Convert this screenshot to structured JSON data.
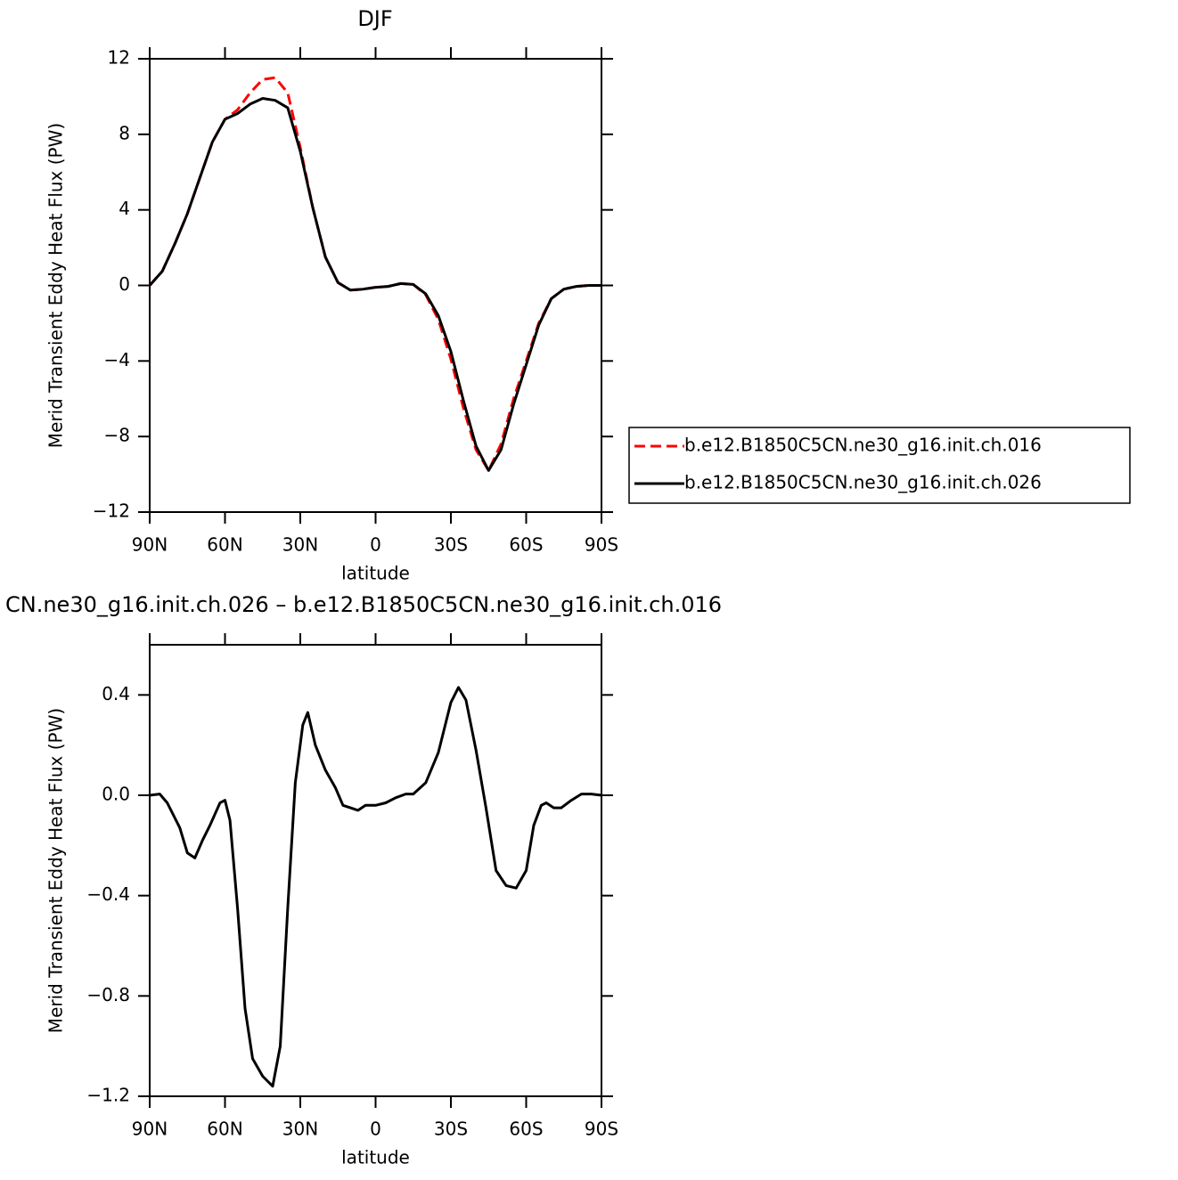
{
  "chart_data": [
    {
      "type": "line",
      "title": "DJF",
      "xlabel": "latitude",
      "ylabel": "Merid Transient Eddy Heat Flux (PW)",
      "x": [
        90,
        85,
        80,
        75,
        70,
        65,
        60,
        55,
        50,
        45,
        40,
        35,
        30,
        25,
        20,
        15,
        10,
        5,
        0,
        -5,
        -10,
        -15,
        -20,
        -25,
        -30,
        -35,
        -40,
        -45,
        -50,
        -55,
        -60,
        -65,
        -70,
        -75,
        -80,
        -85,
        -90
      ],
      "series": [
        {
          "name": "b.e12.B1850C5CN.ne30_g16.init.ch.016",
          "color": "#ff0000",
          "line_style": "dashed",
          "values": [
            0,
            0.75,
            2.2,
            3.8,
            5.7,
            7.6,
            8.8,
            9.3,
            10.2,
            10.9,
            11.0,
            10.2,
            7.3,
            4.1,
            1.5,
            0.15,
            -0.25,
            -0.2,
            -0.1,
            -0.05,
            0.1,
            0.05,
            -0.5,
            -1.8,
            -3.9,
            -6.5,
            -8.7,
            -9.8,
            -8.4,
            -6.0,
            -4.0,
            -2.0,
            -0.7,
            -0.2,
            -0.05,
            0,
            0
          ]
        },
        {
          "name": "b.e12.B1850C5CN.ne30_g16.init.ch.026",
          "color": "#000000",
          "line_style": "solid",
          "values": [
            0,
            0.75,
            2.2,
            3.8,
            5.7,
            7.6,
            8.8,
            9.1,
            9.6,
            9.9,
            9.8,
            9.4,
            7.1,
            4.1,
            1.5,
            0.15,
            -0.25,
            -0.2,
            -0.1,
            -0.05,
            0.1,
            0.05,
            -0.45,
            -1.6,
            -3.5,
            -6.1,
            -8.5,
            -9.8,
            -8.7,
            -6.3,
            -4.2,
            -2.1,
            -0.7,
            -0.2,
            -0.05,
            0,
            0
          ]
        }
      ],
      "xlim": [
        90,
        -90
      ],
      "xticks": [
        {
          "value": 90,
          "label": "90N"
        },
        {
          "value": 60,
          "label": "60N"
        },
        {
          "value": 30,
          "label": "30N"
        },
        0,
        {
          "value": -30,
          "label": "30S"
        },
        {
          "value": -60,
          "label": "60S"
        },
        {
          "value": -90,
          "label": "90S"
        }
      ],
      "ylim": [
        -12,
        12
      ],
      "yticks": [
        {
          "value": -12,
          "label": "−12"
        },
        {
          "value": -8,
          "label": "−8"
        },
        {
          "value": -4,
          "label": "−4"
        },
        0,
        4,
        8,
        12
      ],
      "legend": "right"
    },
    {
      "type": "line",
      "title": "CN.ne30_g16.init.ch.026 – b.e12.B1850C5CN.ne30_g16.init.ch.016",
      "xlabel": "latitude",
      "ylabel": "Merid Transient Eddy Heat Flux (PW)",
      "x": [
        90,
        86,
        83,
        78,
        75,
        72,
        69,
        66,
        62,
        60,
        58,
        55,
        52,
        49,
        45,
        41,
        38,
        35,
        32,
        29,
        27,
        24,
        20,
        16,
        13,
        10,
        7,
        4,
        0,
        -4,
        -8,
        -12,
        -15,
        -20,
        -25,
        -30,
        -33,
        -36,
        -40,
        -44,
        -48,
        -52,
        -56,
        -60,
        -63,
        -66,
        -68,
        -71,
        -74,
        -78,
        -82,
        -86,
        -90
      ],
      "values": [
        0,
        0.005,
        -0.03,
        -0.13,
        -0.23,
        -0.25,
        -0.18,
        -0.12,
        -0.03,
        -0.02,
        -0.1,
        -0.45,
        -0.85,
        -1.05,
        -1.12,
        -1.16,
        -1.0,
        -0.45,
        0.05,
        0.28,
        0.33,
        0.2,
        0.1,
        0.03,
        -0.04,
        -0.05,
        -0.06,
        -0.04,
        -0.04,
        -0.03,
        -0.01,
        0.005,
        0.005,
        0.05,
        0.17,
        0.37,
        0.43,
        0.38,
        0.18,
        -0.05,
        -0.3,
        -0.36,
        -0.37,
        -0.3,
        -0.12,
        -0.04,
        -0.03,
        -0.05,
        -0.05,
        -0.02,
        0.005,
        0.005,
        0
      ],
      "color": "#000000",
      "xlim": [
        90,
        -90
      ],
      "xticks": [
        {
          "value": 90,
          "label": "90N"
        },
        {
          "value": 60,
          "label": "60N"
        },
        {
          "value": 30,
          "label": "30N"
        },
        0,
        {
          "value": -30,
          "label": "30S"
        },
        {
          "value": -60,
          "label": "60S"
        },
        {
          "value": -90,
          "label": "90S"
        }
      ],
      "ylim": [
        -1.2,
        0.6
      ],
      "yticks": [
        {
          "value": -1.2,
          "label": "−1.2"
        },
        {
          "value": -0.8,
          "label": "−0.8"
        },
        {
          "value": -0.4,
          "label": "−0.4"
        },
        {
          "value": 0,
          "label": "0.0"
        },
        0.4
      ]
    }
  ]
}
